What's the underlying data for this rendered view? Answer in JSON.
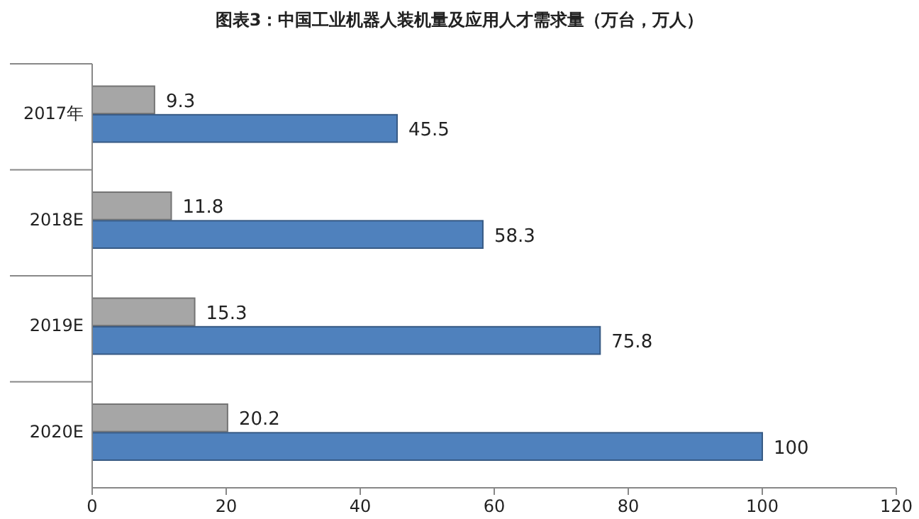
{
  "chart_data": {
    "type": "bar",
    "orientation": "horizontal",
    "title": "图表3：中国工业机器人装机量及应用人才需求量（万台，万人）",
    "categories": [
      "2017年",
      "2018E",
      "2019E",
      "2020E"
    ],
    "series": [
      {
        "color": "#a6a6a6",
        "values": [
          9.3,
          11.8,
          15.3,
          20.2
        ]
      },
      {
        "color": "#4f81bd",
        "values": [
          45.5,
          58.3,
          75.8,
          100
        ]
      }
    ],
    "xlim": [
      0,
      120
    ],
    "xticks": [
      0,
      20,
      40,
      60,
      80,
      100,
      120
    ],
    "data_labels": true
  }
}
